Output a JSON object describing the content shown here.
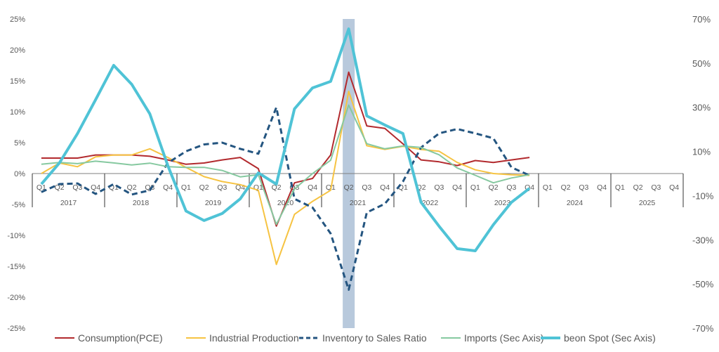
{
  "chart_data": {
    "type": "line",
    "title": "",
    "years": [
      "2017",
      "2018",
      "2019",
      "2020",
      "2021",
      "2022",
      "2023",
      "2024",
      "2025"
    ],
    "quarters": [
      "Q1",
      "Q2",
      "Q3",
      "Q4"
    ],
    "highlight": {
      "year": "2021",
      "quarter": "Q2",
      "color": "#b8c9dc"
    },
    "y_left": {
      "ylim": [
        -25,
        25
      ],
      "ticks": [
        "25%",
        "20%",
        "15%",
        "10%",
        "5%",
        "0%",
        "-5%",
        "-10%",
        "-15%",
        "-20%",
        "-25%"
      ]
    },
    "y_right": {
      "ylim": [
        -70,
        70
      ],
      "ticks": [
        "70%",
        "50%",
        "30%",
        "10%",
        "-10%",
        "-30%",
        "-50%",
        "-70%"
      ]
    },
    "legend_position": "bottom",
    "grid": false,
    "series": [
      {
        "name": "Consumption(PCE)",
        "axis": "left",
        "color": "#b22a2e",
        "style": "solid",
        "values": [
          2.5,
          2.5,
          2.5,
          3.0,
          3.0,
          3.0,
          2.8,
          2.2,
          1.5,
          1.7,
          2.2,
          2.6,
          0.8,
          -8.5,
          -1.5,
          -0.8,
          3.0,
          16.4,
          7.7,
          7.3,
          4.8,
          2.2,
          1.9,
          1.3,
          2.1,
          1.8,
          2.2,
          2.6
        ]
      },
      {
        "name": "Industrial Production",
        "axis": "left",
        "color": "#f6c342",
        "style": "solid",
        "values": [
          0,
          1.7,
          1.1,
          2.7,
          3.0,
          3.0,
          4.0,
          2.6,
          1.0,
          -0.5,
          -1.3,
          -1.8,
          -2.7,
          -14.7,
          -6.6,
          -4.5,
          -2.7,
          13.3,
          4.5,
          3.9,
          4.4,
          3.9,
          3.6,
          1.8,
          0.6,
          0,
          -0.2,
          -0.3
        ]
      },
      {
        "name": "Inventory to Sales Ratio",
        "axis": "left",
        "color": "#245580",
        "style": "dashed",
        "values": [
          -3.0,
          -1.7,
          -1.6,
          -3.3,
          -1.7,
          -3.4,
          -2.7,
          1.7,
          3.6,
          4.7,
          5.0,
          4.0,
          3.2,
          10.7,
          -4.1,
          -5.5,
          -9.7,
          -18.8,
          -6.3,
          -4.9,
          -1.3,
          4.2,
          6.5,
          7.2,
          6.5,
          5.7,
          1.0,
          -0.3
        ]
      },
      {
        "name": "Imports (Sec Axis)",
        "axis": "right",
        "color": "#86c9a0",
        "style": "solid",
        "values": [
          4.2,
          5.0,
          4.5,
          5.6,
          4.8,
          3.9,
          4.7,
          3.1,
          2.8,
          2.8,
          1.4,
          -1.5,
          -0.5,
          -23,
          -7,
          0,
          6,
          31,
          13.5,
          11.2,
          12.5,
          11.8,
          8.5,
          2.5,
          -0.8,
          -4.2,
          -2,
          -0.5
        ]
      },
      {
        "name": "beon Spot (Sec Axis)",
        "axis": "right",
        "color": "#4fc3d6",
        "style": "thick",
        "values": [
          -4.8,
          4.8,
          18.1,
          33.4,
          49,
          40.4,
          27,
          3.5,
          -17,
          -21.3,
          -18.1,
          -11.5,
          0.3,
          -4.8,
          29.3,
          38.8,
          41.7,
          65.5,
          26.1,
          22,
          18.1,
          -13,
          -23.9,
          -34,
          -35,
          -23.2,
          -13,
          -6.7
        ]
      }
    ]
  }
}
